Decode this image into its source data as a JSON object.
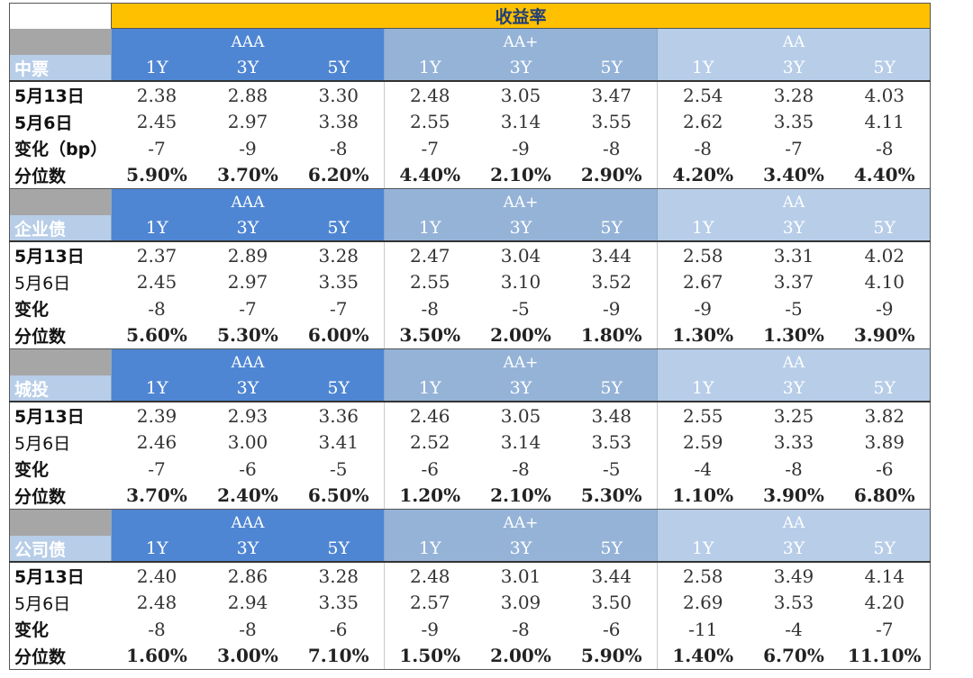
{
  "title": "收益率",
  "group_labels": [
    "AAA",
    "AA+",
    "AA"
  ],
  "tenors": [
    "1Y",
    "3Y",
    "5Y"
  ],
  "sections": [
    {
      "name": "中票",
      "rows": [
        {
          "label": "5月13日",
          "bold": true,
          "values": [
            "2.38",
            "2.88",
            "3.30",
            "2.48",
            "3.05",
            "3.47",
            "2.54",
            "3.28",
            "4.03"
          ]
        },
        {
          "label": "5月6日",
          "bold": true,
          "values": [
            "2.45",
            "2.97",
            "3.38",
            "2.55",
            "3.14",
            "3.55",
            "2.62",
            "3.35",
            "4.11"
          ]
        },
        {
          "label": "变化（bp）",
          "bold": true,
          "values": [
            "-7",
            "-9",
            "-8",
            "-7",
            "-9",
            "-8",
            "-8",
            "-7",
            "-8"
          ]
        },
        {
          "label": "分位数",
          "bold": true,
          "values": [
            "5.90%",
            "3.70%",
            "6.20%",
            "4.40%",
            "2.10%",
            "2.90%",
            "4.20%",
            "3.40%",
            "4.40%"
          ]
        }
      ]
    },
    {
      "name": "企业债",
      "rows": [
        {
          "label": "5月13日",
          "bold": true,
          "values": [
            "2.37",
            "2.89",
            "3.28",
            "2.47",
            "3.04",
            "3.44",
            "2.58",
            "3.31",
            "4.02"
          ]
        },
        {
          "label": "5月6日",
          "bold": false,
          "values": [
            "2.45",
            "2.97",
            "3.35",
            "2.55",
            "3.10",
            "3.52",
            "2.67",
            "3.37",
            "4.10"
          ]
        },
        {
          "label": "变化",
          "bold": true,
          "values": [
            "-8",
            "-7",
            "-7",
            "-8",
            "-5",
            "-9",
            "-9",
            "-5",
            "-9"
          ]
        },
        {
          "label": "分位数",
          "bold": true,
          "values": [
            "5.60%",
            "5.30%",
            "6.00%",
            "3.50%",
            "2.00%",
            "1.80%",
            "1.30%",
            "1.30%",
            "3.90%"
          ]
        }
      ]
    },
    {
      "name": "城投",
      "rows": [
        {
          "label": "5月13日",
          "bold": true,
          "values": [
            "2.39",
            "2.93",
            "3.36",
            "2.46",
            "3.05",
            "3.48",
            "2.55",
            "3.25",
            "3.82"
          ]
        },
        {
          "label": "5月6日",
          "bold": false,
          "values": [
            "2.46",
            "3.00",
            "3.41",
            "2.52",
            "3.14",
            "3.53",
            "2.59",
            "3.33",
            "3.89"
          ]
        },
        {
          "label": "变化",
          "bold": true,
          "values": [
            "-7",
            "-6",
            "-5",
            "-6",
            "-8",
            "-5",
            "-4",
            "-8",
            "-6"
          ]
        },
        {
          "label": "分位数",
          "bold": true,
          "values": [
            "3.70%",
            "2.40%",
            "6.50%",
            "1.20%",
            "2.10%",
            "5.30%",
            "1.10%",
            "3.90%",
            "6.80%"
          ]
        }
      ]
    },
    {
      "name": "公司债",
      "rows": [
        {
          "label": "5月13日",
          "bold": true,
          "values": [
            "2.40",
            "2.86",
            "3.28",
            "2.48",
            "3.01",
            "3.44",
            "2.58",
            "3.49",
            "4.14"
          ]
        },
        {
          "label": "5月6日",
          "bold": false,
          "values": [
            "2.48",
            "2.94",
            "3.35",
            "2.57",
            "3.09",
            "3.50",
            "2.69",
            "3.53",
            "4.20"
          ]
        },
        {
          "label": "变化",
          "bold": true,
          "values": [
            "-8",
            "-8",
            "-6",
            "-9",
            "-8",
            "-6",
            "-11",
            "-4",
            "-7"
          ]
        },
        {
          "label": "分位数",
          "bold": true,
          "values": [
            "1.60%",
            "3.00%",
            "7.10%",
            "1.50%",
            "2.00%",
            "5.90%",
            "1.40%",
            "6.70%",
            "11.10%"
          ]
        }
      ]
    }
  ],
  "colors": {
    "title_bg": "#ffc000",
    "AAA_bg": "#4f86d3",
    "AA+_bg": "#95b3d7",
    "AA_bg": "#b7cde8",
    "label_top_bg": "#a6a6a6"
  }
}
